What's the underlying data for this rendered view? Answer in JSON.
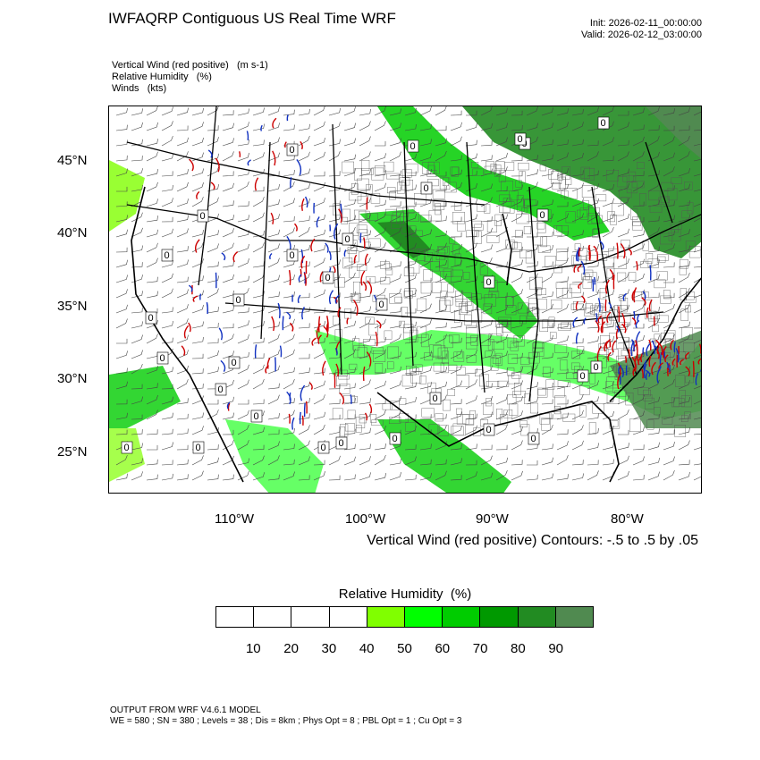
{
  "header": {
    "title": "IWFAQRP Contiguous US Real Time WRF",
    "init": "Init: 2026-02-11_00:00:00",
    "valid": "Valid: 2026-02-12_03:00:00"
  },
  "fields": [
    {
      "name": "Vertical Wind (red positive)",
      "unit": "(m s-1)"
    },
    {
      "name": "Relative Humidity",
      "unit": "(%)"
    },
    {
      "name": "Winds",
      "unit": "(kts)"
    }
  ],
  "map": {
    "lat_labels": [
      "45°N",
      "40°N",
      "35°N",
      "30°N",
      "25°N"
    ],
    "lon_labels": [
      "110°W",
      "100°W",
      "90°W",
      "80°W"
    ],
    "lat_range": [
      22,
      48.5
    ],
    "lon_range": [
      -119.5,
      -75
    ],
    "contour_label": "0",
    "contour_note": "Vertical Wind (red positive) Contours: -.5 to .5 by .05",
    "colors": {
      "state_lines": "#000000",
      "county_lines": "#555555",
      "wind_barbs": "#444444",
      "updraft": "#cc0000",
      "downdraft": "#1030c0"
    }
  },
  "colorbar": {
    "title": "Relative Humidity",
    "unit": "(%)",
    "labels": [
      "10",
      "20",
      "30",
      "40",
      "50",
      "60",
      "70",
      "80",
      "90"
    ],
    "colors": [
      "#ffffff",
      "#ffffff",
      "#ffffff",
      "#ffffff",
      "#80ff00",
      "#00ff00",
      "#00cc00",
      "#009900",
      "#228b22",
      "#508a50"
    ]
  },
  "footer": {
    "line1": "OUTPUT FROM WRF V4.6.1 MODEL",
    "line2": "WE = 580 ; SN = 380 ; Levels = 38 ; Dis = 8km ; Phys Opt = 8 ; PBL Opt = 1 ; Cu Opt = 3"
  }
}
